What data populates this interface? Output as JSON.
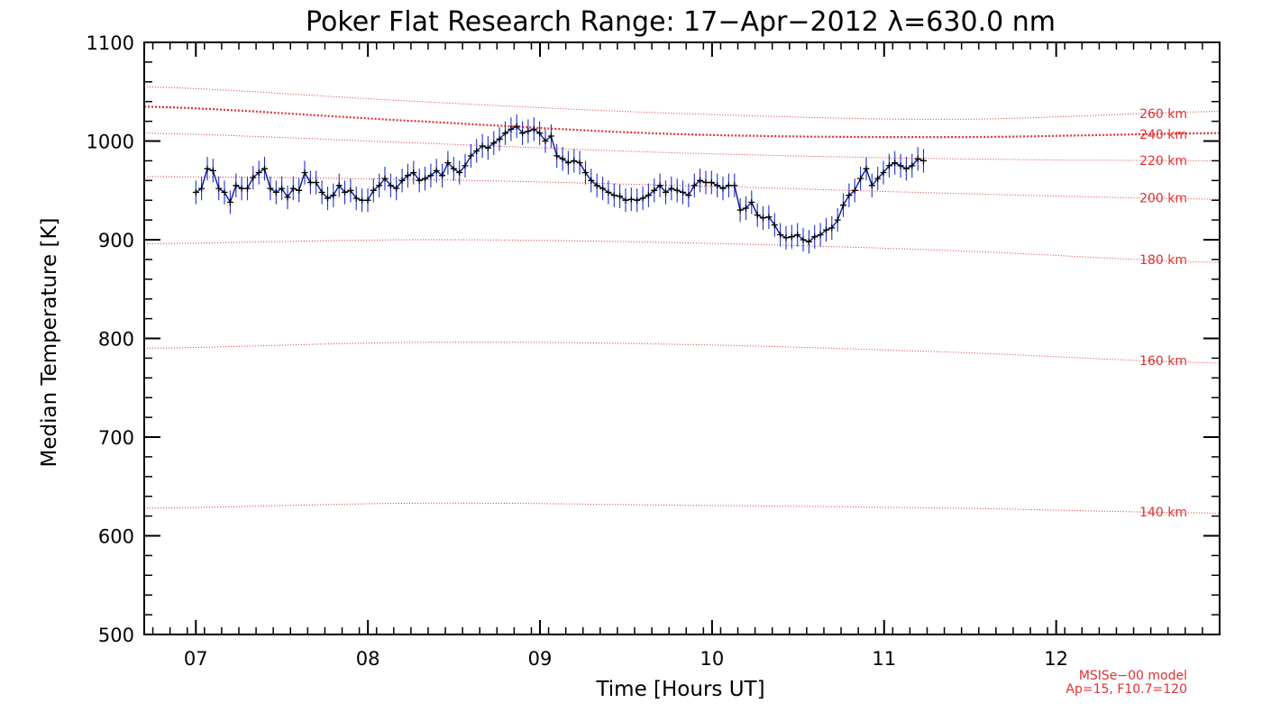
{
  "chart_data": {
    "type": "line",
    "title": "Poker Flat Research Range: 17−Apr−2012 λ=630.0 nm",
    "xlabel": "Time [Hours UT]",
    "ylabel": "Median Temperature [K]",
    "xlim": [
      6.7,
      12.95
    ],
    "ylim": [
      500,
      1100
    ],
    "x_ticks": [
      7,
      8,
      9,
      10,
      11,
      12
    ],
    "x_tick_labels": [
      "07",
      "08",
      "09",
      "10",
      "11",
      "12"
    ],
    "y_ticks": [
      500,
      600,
      700,
      800,
      900,
      1000,
      1100
    ],
    "y_tick_labels": [
      "500",
      "600",
      "700",
      "800",
      "900",
      "1000",
      "1100"
    ],
    "grid": false,
    "colors": {
      "measurement_line": "#0a1a8c",
      "marker": "#000000",
      "error_bar": "#2030d0",
      "model": "#e23030"
    },
    "measurement": {
      "x_start": 7.0,
      "x_step": 0.0333,
      "values": [
        948,
        952,
        972,
        970,
        952,
        948,
        938,
        955,
        952,
        952,
        963,
        968,
        972,
        952,
        948,
        952,
        943,
        952,
        950,
        968,
        958,
        958,
        948,
        942,
        945,
        955,
        948,
        950,
        942,
        940,
        940,
        950,
        955,
        962,
        955,
        952,
        960,
        965,
        968,
        960,
        962,
        965,
        970,
        965,
        978,
        972,
        968,
        975,
        985,
        990,
        995,
        993,
        998,
        1002,
        1008,
        1012,
        1015,
        1008,
        1010,
        1012,
        1008,
        1000,
        1005,
        985,
        982,
        978,
        980,
        978,
        968,
        960,
        955,
        952,
        948,
        945,
        944,
        940,
        941,
        940,
        942,
        945,
        950,
        955,
        948,
        952,
        950,
        948,
        945,
        955,
        960,
        958,
        958,
        955,
        952,
        955,
        955,
        930,
        932,
        938,
        925,
        922,
        923,
        915,
        905,
        902,
        903,
        905,
        900,
        898,
        903,
        905,
        910,
        912,
        920,
        935,
        945,
        950,
        962,
        972,
        955,
        962,
        968,
        975,
        978,
        975,
        972,
        975,
        982,
        980
      ],
      "error": 12
    },
    "model_curves": [
      {
        "label": "140 km",
        "values": [
          628,
          633,
          631,
          628,
          623
        ]
      },
      {
        "label": "160 km",
        "values": [
          790,
          796,
          794,
          786,
          775
        ]
      },
      {
        "label": "180 km",
        "values": [
          896,
          900,
          897,
          889,
          877
        ]
      },
      {
        "label": "200 km",
        "values": [
          964,
          961,
          955,
          947,
          941
        ]
      },
      {
        "label": "220 km",
        "values": [
          1008,
          998,
          988,
          982,
          980
        ]
      },
      {
        "label": "240 km",
        "values": [
          1035,
          1020,
          1007,
          1004,
          1008
        ]
      },
      {
        "label": "260 km",
        "values": [
          1055,
          1040,
          1028,
          1022,
          1030
        ]
      }
    ],
    "model_x": [
      6.7,
      8.3,
      9.8,
      11.4,
      12.95
    ],
    "model_note": [
      "MSISe−00 model",
      "Ap=15, F10.7=120"
    ]
  }
}
